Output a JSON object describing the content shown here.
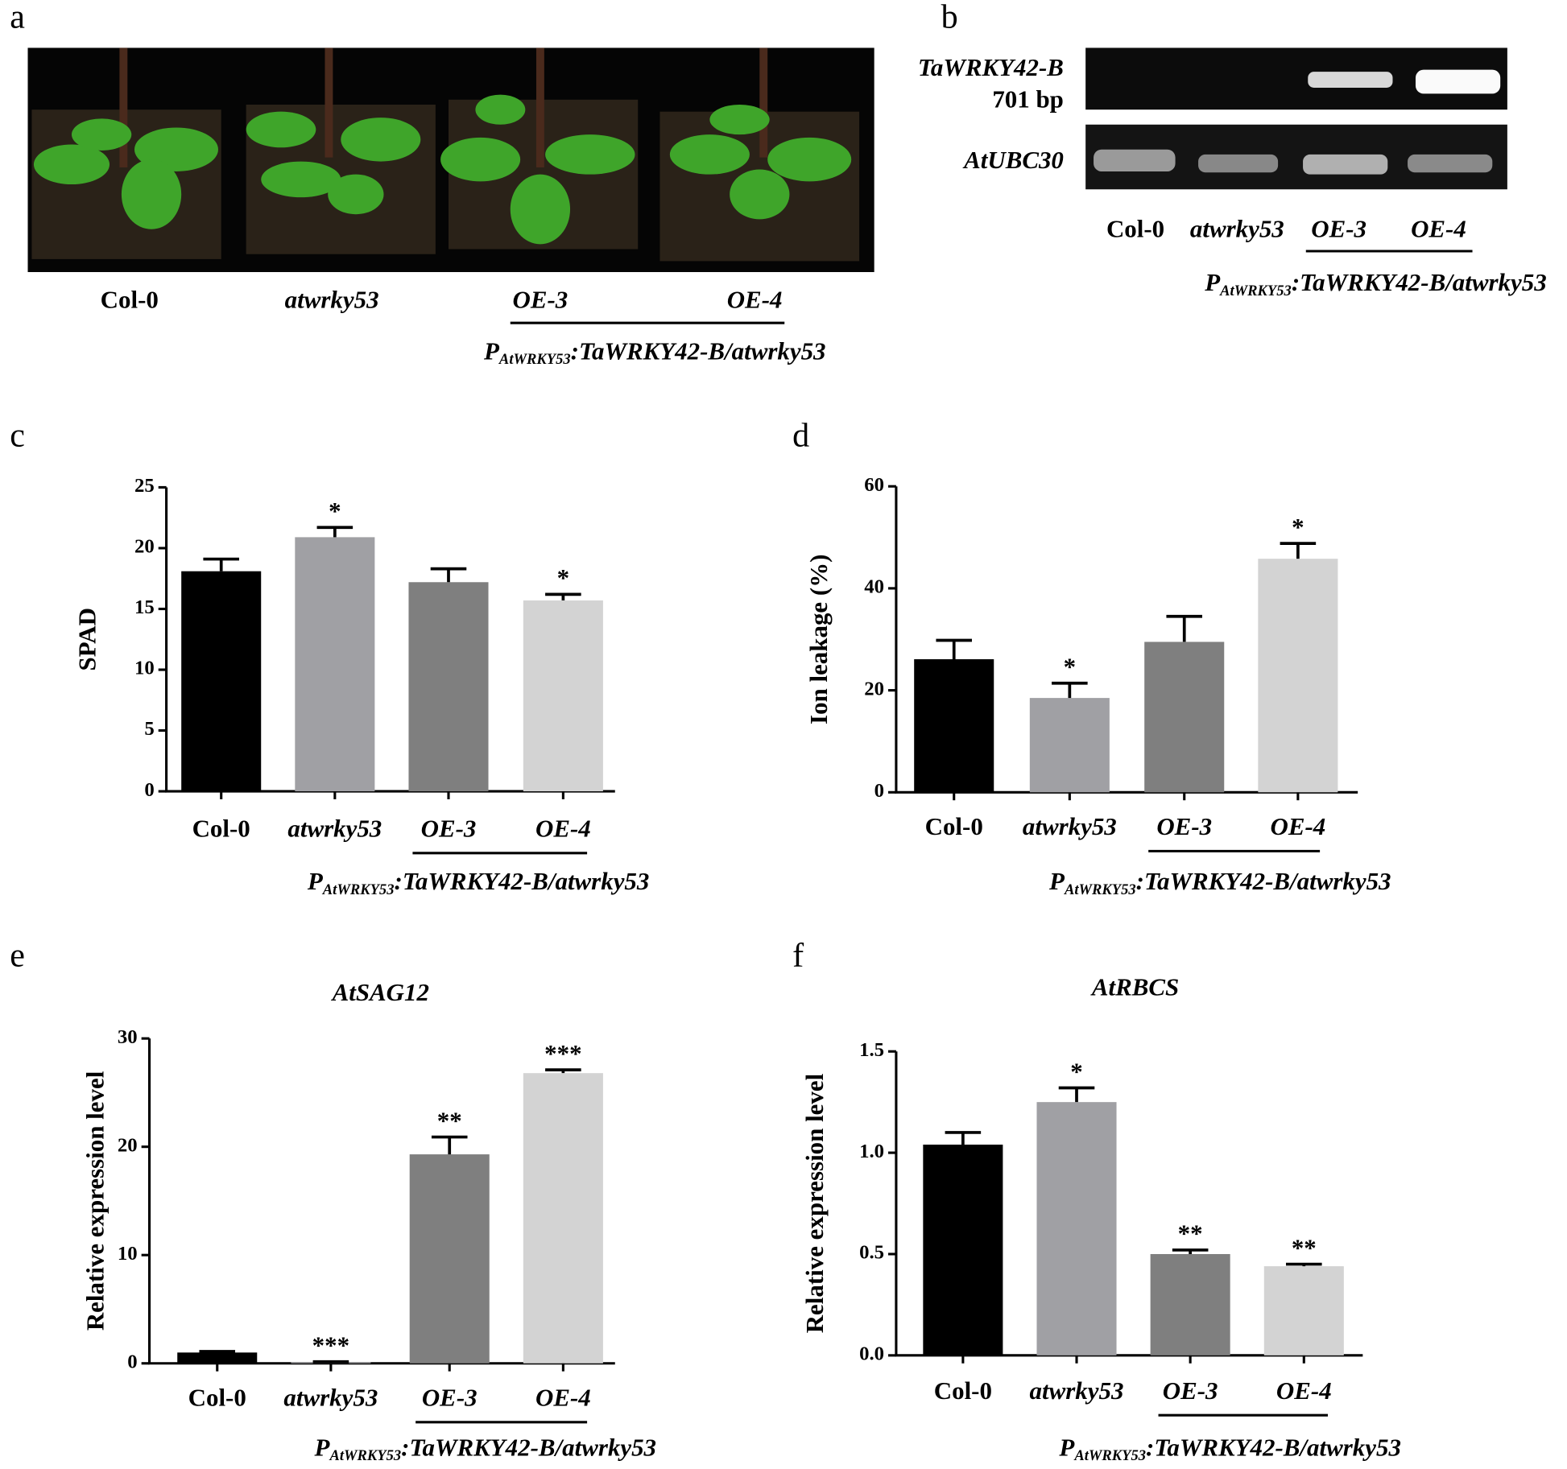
{
  "panel_labels": [
    "a",
    "b",
    "c",
    "d",
    "e",
    "f"
  ],
  "photo": {
    "labels": [
      "Col-0",
      "atwrky53",
      "OE-3",
      "OE-4"
    ],
    "construct": {
      "prefix": "P",
      "subscript": "AtWRKY53",
      "suffix": ":TaWRKY42-B/atwrky53"
    }
  },
  "gel": {
    "bands": [
      {
        "label": "TaWRKY42-B",
        "sublabel": "701 bp"
      },
      {
        "label": "AtUBC30"
      }
    ],
    "lanes": [
      "Col-0",
      "atwrky53",
      "OE-3",
      "OE-4"
    ],
    "construct": {
      "prefix": "P",
      "subscript": "AtWRKY53",
      "suffix": ":TaWRKY42-B/atwrky53"
    }
  },
  "chart_data": [
    {
      "type": "bar",
      "ylabel": "SPAD",
      "categories": [
        "Col-0",
        "atwrky53",
        "OE-3",
        "OE-4"
      ],
      "values": [
        18.1,
        20.9,
        17.2,
        15.7
      ],
      "errors": [
        1.0,
        0.8,
        1.1,
        0.5
      ],
      "annotations": [
        null,
        "*",
        null,
        "*"
      ],
      "colors": [
        "#000000",
        "#a0a0a4",
        "#7f7f7f",
        "#d3d3d3"
      ],
      "ylim": [
        0,
        25
      ],
      "yticks": [
        0,
        5,
        10,
        15,
        20,
        25
      ],
      "group_label": {
        "prefix": "P",
        "subscript": "AtWRKY53",
        "suffix": ":TaWRKY42-B/atwrky53"
      }
    },
    {
      "type": "bar",
      "ylabel": "Ion leakage (%)",
      "categories": [
        "Col-0",
        "atwrky53",
        "OE-3",
        "OE-4"
      ],
      "values": [
        26.1,
        18.5,
        29.5,
        45.8
      ],
      "errors": [
        3.7,
        2.9,
        5.0,
        3.0
      ],
      "annotations": [
        null,
        "*",
        null,
        "*"
      ],
      "colors": [
        "#000000",
        "#a0a0a4",
        "#7f7f7f",
        "#d3d3d3"
      ],
      "ylim": [
        0,
        60
      ],
      "yticks": [
        0,
        20,
        40,
        60
      ],
      "group_label": {
        "prefix": "P",
        "subscript": "AtWRKY53",
        "suffix": ":TaWRKY42-B/atwrky53"
      }
    },
    {
      "type": "bar",
      "title": "AtSAG12",
      "ylabel": "Relative expression level",
      "categories": [
        "Col-0",
        "atwrky53",
        "OE-3",
        "OE-4"
      ],
      "values": [
        1.0,
        0.1,
        19.3,
        26.8
      ],
      "errors": [
        0.1,
        0.05,
        1.6,
        0.3
      ],
      "annotations": [
        null,
        "***",
        "**",
        "***"
      ],
      "colors": [
        "#000000",
        "#a0a0a4",
        "#7f7f7f",
        "#d3d3d3"
      ],
      "ylim": [
        0,
        30
      ],
      "yticks": [
        0,
        10,
        20,
        30
      ],
      "group_label": {
        "prefix": "P",
        "subscript": "AtWRKY53",
        "suffix": ":TaWRKY42-B/atwrky53"
      }
    },
    {
      "type": "bar",
      "title": "AtRBCS",
      "ylabel": "Relative expression level",
      "categories": [
        "Col-0",
        "atwrky53",
        "OE-3",
        "OE-4"
      ],
      "values": [
        1.04,
        1.25,
        0.5,
        0.44
      ],
      "errors": [
        0.06,
        0.07,
        0.02,
        0.01
      ],
      "annotations": [
        null,
        "*",
        "**",
        "**"
      ],
      "colors": [
        "#000000",
        "#a0a0a4",
        "#7f7f7f",
        "#d3d3d3"
      ],
      "ylim": [
        0,
        1.5
      ],
      "yticks": [
        {
          "value": 0,
          "label": "0.0"
        },
        0.5,
        {
          "value": 1,
          "label": "1.0"
        },
        {
          "value": 1.5,
          "label": "1.5"
        }
      ],
      "group_label": {
        "prefix": "P",
        "subscript": "AtWRKY53",
        "suffix": ":TaWRKY42-B/atwrky53"
      }
    }
  ]
}
